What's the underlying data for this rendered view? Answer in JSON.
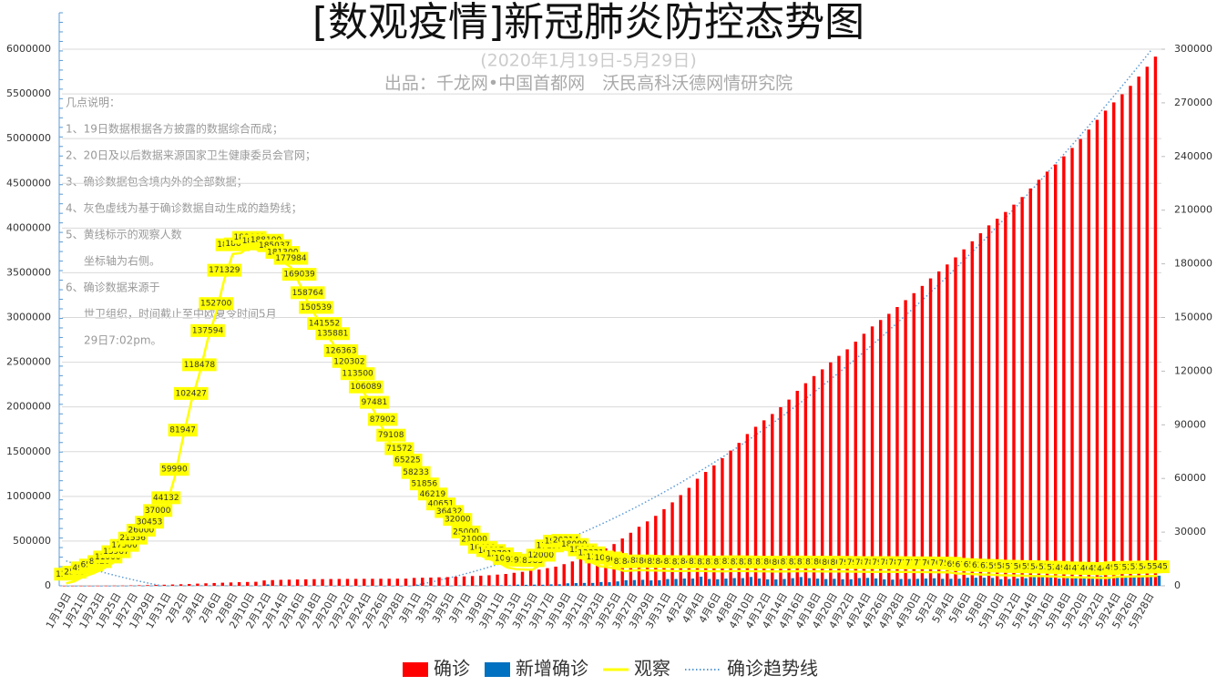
{
  "chart_data": {
    "type": "bar",
    "title": "[数观疫情]新冠肺炎防控态势图",
    "subtitle": "(2020年1月19日-5月29日)",
    "source": "出品：千龙网•中国首都网　沃民高科沃德网情研究院",
    "notes": [
      "几点说明：",
      "1、19日数据根据各方披露的数据综合而成；",
      "2、20日及以后数据来源国家卫生健康委员会官网；",
      "3、确诊数据包含境内外的全部数据；",
      "4、灰色虚线为基于确诊数据自动生成的趋势线；",
      "5、黄线标示的观察人数",
      "坐标轴为右侧。",
      "6、确诊数据来源于",
      "世卫组织，时间截止至中欧夏令时间5月",
      "29日7:02pm。"
    ],
    "categories": [
      "1月19日",
      null,
      "1月21日",
      null,
      "1月23日",
      null,
      "1月25日",
      null,
      "1月27日",
      null,
      "1月29日",
      null,
      "1月31日",
      null,
      "2月2日",
      null,
      "2月4日",
      null,
      "2月6日",
      null,
      "2月8日",
      null,
      "2月10日",
      null,
      "2月12日",
      null,
      "2月14日",
      null,
      "2月16日",
      null,
      "2月18日",
      null,
      "2月20日",
      null,
      "2月22日",
      null,
      "2月24日",
      null,
      "2月26日",
      null,
      "2月28日",
      null,
      "3月1日",
      null,
      "3月3日",
      null,
      "3月5日",
      null,
      "3月7日",
      null,
      "3月9日",
      null,
      "3月11日",
      null,
      "3月13日",
      null,
      "3月15日",
      null,
      "3月17日",
      null,
      "3月19日",
      null,
      "3月21日",
      null,
      "3月23日",
      null,
      "3月25日",
      null,
      "3月27日",
      null,
      "3月29日",
      null,
      "3月31日",
      null,
      "4月2日",
      null,
      "4月4日",
      null,
      "4月6日",
      null,
      "4月8日",
      null,
      "4月10日",
      null,
      "4月12日",
      null,
      "4月14日",
      null,
      "4月16日",
      null,
      "4月18日",
      null,
      "4月20日",
      null,
      "4月22日",
      null,
      "4月24日",
      null,
      "4月26日",
      null,
      "4月28日",
      null,
      "4月30日",
      null,
      "5月2日",
      null,
      "5月4日",
      null,
      "5月6日",
      null,
      "5月8日",
      null,
      "5月10日",
      null,
      "5月12日",
      null,
      "5月14日",
      null,
      "5月16日",
      null,
      "5月18日",
      null,
      "5月20日",
      null,
      "5月22日",
      null,
      "5月24日",
      null,
      "5月26日",
      null,
      "5月28日",
      null
    ],
    "series": [
      {
        "name": "确诊",
        "type": "bar",
        "color": "#ff0000",
        "values": [
          201,
          291,
          440,
          571,
          830,
          1287,
          1975,
          2744,
          4515,
          5974,
          7711,
          9692,
          11791,
          14380,
          17205,
          20438,
          24324,
          28018,
          31161,
          34546,
          37198,
          40171,
          42638,
          44653,
          59804,
          63851,
          66492,
          68500,
          70548,
          72436,
          74185,
          74576,
          75465,
          76288,
          76936,
          77150,
          77658,
          78064,
          78497,
          78824,
          79251,
          79824,
          88000,
          90000,
          92000,
          95000,
          97000,
          101000,
          105000,
          109000,
          113000,
          118000,
          125000,
          132000,
          145000,
          156000,
          169000,
          181000,
          197000,
          214000,
          242000,
          272000,
          304000,
          336000,
          378000,
          418000,
          467000,
          529000,
          593000,
          660000,
          720000,
          782000,
          857000,
          933000,
          1014000,
          1095000,
          1197000,
          1273000,
          1346000,
          1426000,
          1512000,
          1598000,
          1697000,
          1778000,
          1850000,
          1921000,
          1997000,
          2082000,
          2180000,
          2265000,
          2345000,
          2420000,
          2498000,
          2571000,
          2644000,
          2730000,
          2818000,
          2900000,
          2972000,
          3041000,
          3117000,
          3194000,
          3272000,
          3353000,
          3437000,
          3515000,
          3593000,
          3672000,
          3762000,
          3852000,
          3942000,
          4030000,
          4104000,
          4180000,
          4262000,
          4347000,
          4443000,
          4540000,
          4631000,
          4711000,
          4802000,
          4896000,
          4996000,
          5101000,
          5210000,
          5313000,
          5405000,
          5496000,
          5590000,
          5694000,
          5804000,
          5917000
        ]
      },
      {
        "name": "新增确诊",
        "type": "bar",
        "color": "#0070c0",
        "values": [
          77,
          90,
          149,
          131,
          259,
          457,
          688,
          769,
          1771,
          1459,
          1737,
          1981,
          2099,
          2589,
          2825,
          3233,
          3886,
          3694,
          3143,
          3385,
          2652,
          2973,
          2467,
          2015,
          15151,
          4047,
          2641,
          2008,
          2048,
          1888,
          1749,
          391,
          889,
          823,
          648,
          214,
          508,
          406,
          433,
          327,
          427,
          573,
          8176,
          2000,
          2000,
          3000,
          2000,
          4000,
          4000,
          4000,
          4000,
          5000,
          7000,
          7000,
          13000,
          11000,
          13000,
          12000,
          16000,
          17000,
          28000,
          30000,
          32000,
          32000,
          42000,
          40000,
          49000,
          62000,
          64000,
          67000,
          60000,
          62000,
          75000,
          76000,
          81000,
          81000,
          102000,
          76000,
          73000,
          80000,
          86000,
          86000,
          99000,
          81000,
          72000,
          71000,
          76000,
          85000,
          98000,
          85000,
          80000,
          75000,
          78000,
          73000,
          73000,
          86000,
          88000,
          82000,
          72000,
          69000,
          76000,
          77000,
          78000,
          81000,
          84000,
          78000,
          78000,
          79000,
          90000,
          90000,
          90000,
          88000,
          74000,
          76000,
          82000,
          85000,
          96000,
          97000,
          91000,
          80000,
          91000,
          94000,
          100000,
          105000,
          109000,
          103000,
          92000,
          91000,
          94000,
          104000,
          110000,
          113000
        ]
      },
      {
        "name": "观察",
        "type": "line",
        "axis": "y2",
        "color": "#ffff00",
        "values": [
          1394,
          2500,
          4928,
          6500,
          8420,
          11000,
          13967,
          17500,
          21556,
          26000,
          30453,
          37000,
          44132,
          59990,
          81947,
          102427,
          118478,
          137594,
          152700,
          171329,
          185555,
          186045,
          189660,
          187728,
          188100,
          185037,
          181300,
          177984,
          169039,
          158764,
          150539,
          141552,
          135881,
          126363,
          120302,
          113500,
          106089,
          97481,
          87902,
          79108,
          71572,
          65225,
          58233,
          51856,
          46219,
          40651,
          36432,
          32000,
          25000,
          21000,
          16400,
          14607,
          12791,
          10181,
          9300,
          9140,
          8983,
          12000,
          17198,
          19853,
          20314,
          18000,
          15000,
          13331,
          11000,
          10435,
          9650,
          8309,
          8484,
          8800,
          8600,
          8500,
          8400,
          8300,
          8250,
          8400,
          8350,
          8200,
          8150,
          8100,
          8300,
          8250,
          8200,
          8150,
          8100,
          8050,
          8000,
          8100,
          8200,
          8150,
          8100,
          8050,
          8000,
          8000,
          7950,
          7900,
          7850,
          7800,
          7900,
          7850,
          7800,
          7750,
          7700,
          7700,
          7650,
          7600,
          7500,
          6900,
          6700,
          6500,
          6300,
          6200,
          5900,
          5800,
          5700,
          5600,
          5500,
          5400,
          5300,
          5200,
          4900,
          4800,
          4700,
          4600,
          4500,
          4400,
          4990,
          5100,
          5200,
          5300,
          5400,
          5545
        ]
      }
    ],
    "trendline": {
      "name": "确诊趋势线",
      "color": "#5b9bd5",
      "order": 3
    },
    "ylim": [
      0,
      6000000
    ],
    "yticks": [
      0,
      500000,
      1000000,
      1500000,
      2000000,
      2500000,
      3000000,
      3500000,
      4000000,
      4500000,
      5000000,
      5500000,
      6000000
    ],
    "y2lim": [
      0,
      300000
    ],
    "y2ticks": [
      0,
      30000,
      60000,
      90000,
      120000,
      150000,
      180000,
      210000,
      240000,
      270000,
      300000
    ],
    "grid": true
  }
}
